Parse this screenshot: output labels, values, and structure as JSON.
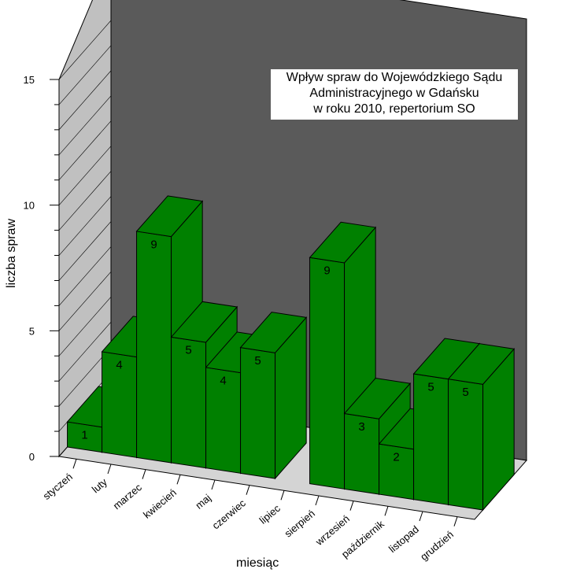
{
  "chart_data": {
    "type": "bar",
    "title_lines": [
      "Wpływ spraw do Wojewódzkiego Sądu",
      "Administracyjnego w Gdańsku",
      "w roku 2010, repertorium SO"
    ],
    "xlabel": "miesiąc",
    "ylabel": "liczba spraw",
    "ylim": [
      0,
      15
    ],
    "yticks": [
      "0",
      "5",
      "10",
      "15"
    ],
    "categories": [
      "styczeń",
      "luty",
      "marzec",
      "kwiecień",
      "maj",
      "czerwiec",
      "lipiec",
      "sierpień",
      "wrzesień",
      "październik",
      "listopad",
      "grudzień"
    ],
    "values": [
      1,
      4,
      9,
      5,
      4,
      5,
      0,
      9,
      3,
      2,
      5,
      5
    ],
    "data_labels": [
      "1",
      "4",
      "9",
      "5",
      "4",
      "5",
      "",
      "9",
      "3",
      "2",
      "5",
      "5"
    ],
    "bar_color": "#008000",
    "wall_color": "#5a5a5a",
    "side_wall_color": "#c0c0c0",
    "floor_color": "#d4d4d4",
    "grid": true
  }
}
